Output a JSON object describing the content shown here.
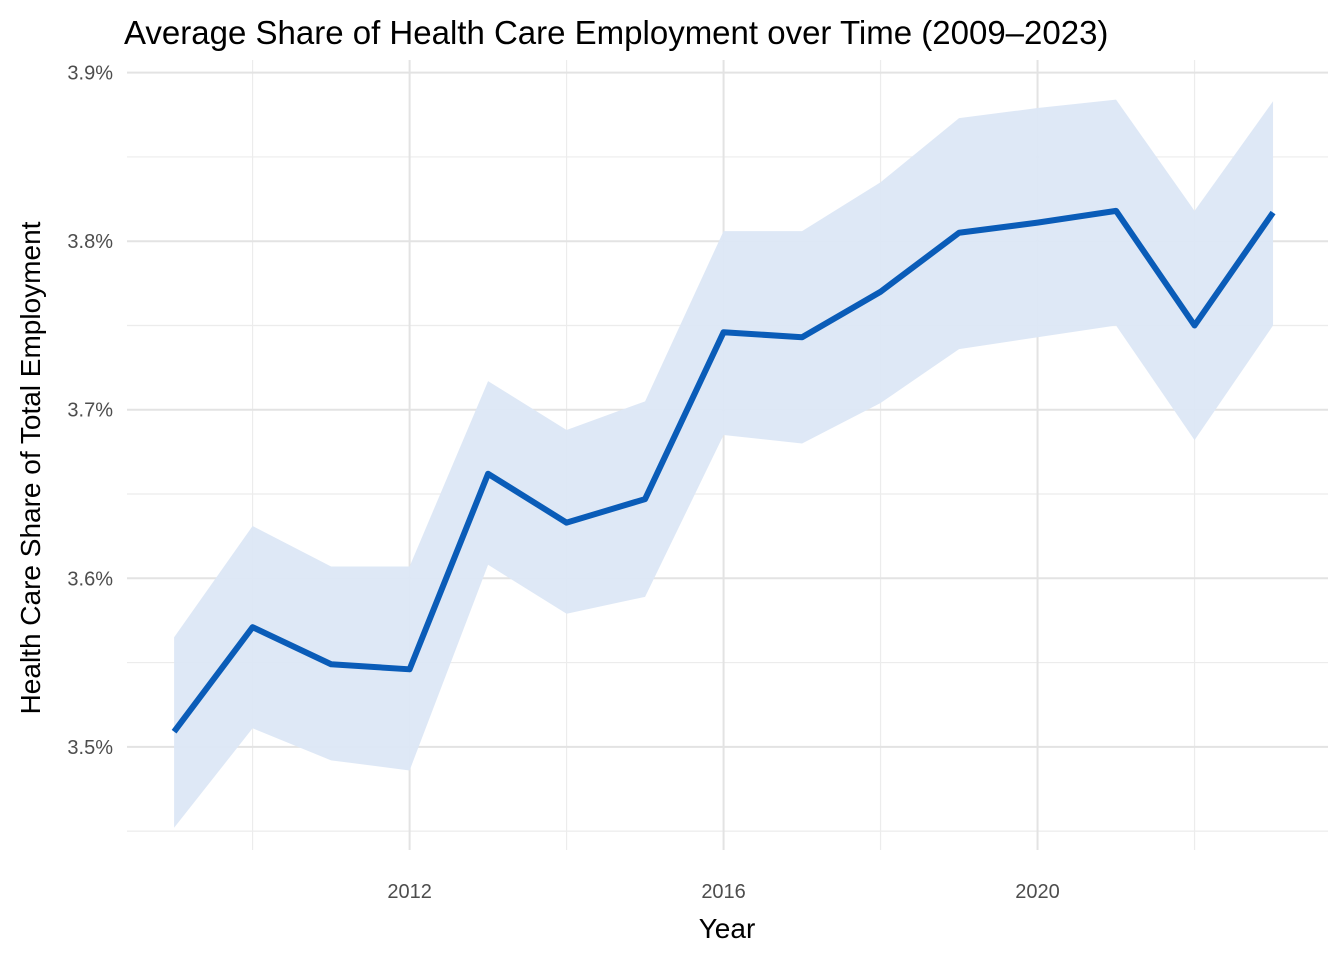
{
  "chart_data": {
    "type": "line",
    "title": "Average Share of Health Care Employment over Time (2009–2023)",
    "xlabel": "Year",
    "ylabel": "Health Care Share of Total Employment",
    "xlim": [
      2008.4,
      2023.7
    ],
    "ylim": [
      3.4388,
      3.9075
    ],
    "x_ticks": [
      2012,
      2016,
      2020
    ],
    "x_tick_labels": [
      "2012",
      "2016",
      "2020"
    ],
    "x_minor_ticks": [
      2010,
      2014,
      2018,
      2022
    ],
    "y_ticks": [
      3.5,
      3.6,
      3.7,
      3.8,
      3.9
    ],
    "y_tick_labels": [
      "3.5%",
      "3.6%",
      "3.7%",
      "3.8%",
      "3.9%"
    ],
    "y_minor_ticks": [
      3.45,
      3.55,
      3.65,
      3.75,
      3.85
    ],
    "grid": true,
    "legend": "none",
    "series": [
      {
        "x": [
          2009,
          2010,
          2011,
          2012,
          2013,
          2014,
          2015,
          2016,
          2017,
          2018,
          2019,
          2020,
          2021,
          2022,
          2023
        ],
        "values": [
          3.509,
          3.571,
          3.549,
          3.546,
          3.662,
          3.633,
          3.647,
          3.746,
          3.743,
          3.77,
          3.805,
          3.811,
          3.818,
          3.75,
          3.817
        ],
        "lower": [
          3.452,
          3.511,
          3.492,
          3.486,
          3.608,
          3.579,
          3.589,
          3.685,
          3.68,
          3.704,
          3.736,
          3.743,
          3.75,
          3.682,
          3.75
        ],
        "upper": [
          3.565,
          3.631,
          3.607,
          3.607,
          3.717,
          3.688,
          3.705,
          3.806,
          3.806,
          3.835,
          3.873,
          3.879,
          3.884,
          3.818,
          3.883
        ],
        "color": "#0a5cb8",
        "band_color": "#dce7f6"
      }
    ]
  }
}
